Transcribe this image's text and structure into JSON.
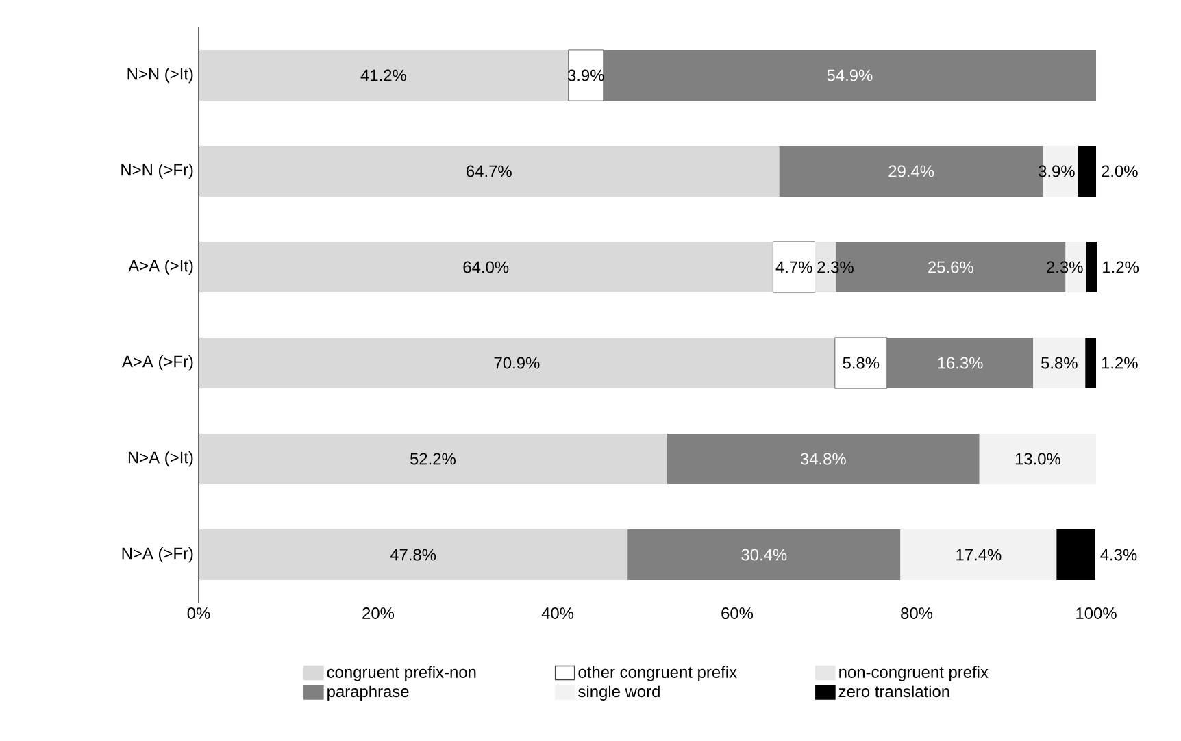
{
  "chart_data": {
    "type": "bar",
    "orientation": "horizontal",
    "stacked": true,
    "categories": [
      "N>N (>It)",
      "N>N (>Fr)",
      "A>A (>It)",
      "A>A (>Fr)",
      "N>A (>It)",
      "N>A (>Fr)"
    ],
    "series": [
      {
        "name": "congruent prefix-non",
        "color": "#d9d9d9",
        "values": [
          41.2,
          64.7,
          64.0,
          70.9,
          52.2,
          47.8
        ],
        "value_labels": [
          "41.2%",
          "64.7%",
          "64.0%",
          "70.9%",
          "52.2%",
          "47.8%"
        ]
      },
      {
        "name": "other congruent prefix",
        "color": "#ffffff",
        "values": [
          3.9,
          null,
          4.7,
          5.8,
          null,
          null
        ],
        "value_labels": [
          "3.9%",
          null,
          "4.7%",
          "5.8%",
          null,
          null
        ]
      },
      {
        "name": "non-congruent prefix",
        "color": "#e6e6e6",
        "values": [
          null,
          null,
          2.3,
          null,
          null,
          null
        ],
        "value_labels": [
          null,
          null,
          "2.3%",
          null,
          null,
          null
        ]
      },
      {
        "name": "paraphrase",
        "color": "#808080",
        "values": [
          54.9,
          29.4,
          25.6,
          16.3,
          34.8,
          30.4
        ],
        "value_labels": [
          "54.9%",
          "29.4%",
          "25.6%",
          "16.3%",
          "34.8%",
          "30.4%"
        ]
      },
      {
        "name": "single word",
        "color": "#f2f2f2",
        "values": [
          null,
          3.9,
          2.3,
          5.8,
          13.0,
          17.4
        ],
        "value_labels": [
          null,
          "3.9%",
          "2.3%",
          "5.8%",
          "13.0%",
          "17.4%"
        ]
      },
      {
        "name": "zero translation",
        "color": "#000000",
        "values": [
          null,
          2.0,
          1.2,
          1.2,
          null,
          4.3
        ],
        "value_labels": [
          null,
          "2.0%",
          "1.2%",
          "1.2%",
          null,
          "4.3%"
        ]
      }
    ],
    "data_labels": true,
    "xlim": [
      0,
      100
    ],
    "xticks": [
      {
        "value": 0,
        "label": "0%"
      },
      {
        "value": 20,
        "label": "20%"
      },
      {
        "value": 40,
        "label": "40%"
      },
      {
        "value": 60,
        "label": "60%"
      },
      {
        "value": 80,
        "label": "80%"
      },
      {
        "value": 100,
        "label": "100%"
      }
    ],
    "grid": false,
    "legend": "bottom"
  }
}
